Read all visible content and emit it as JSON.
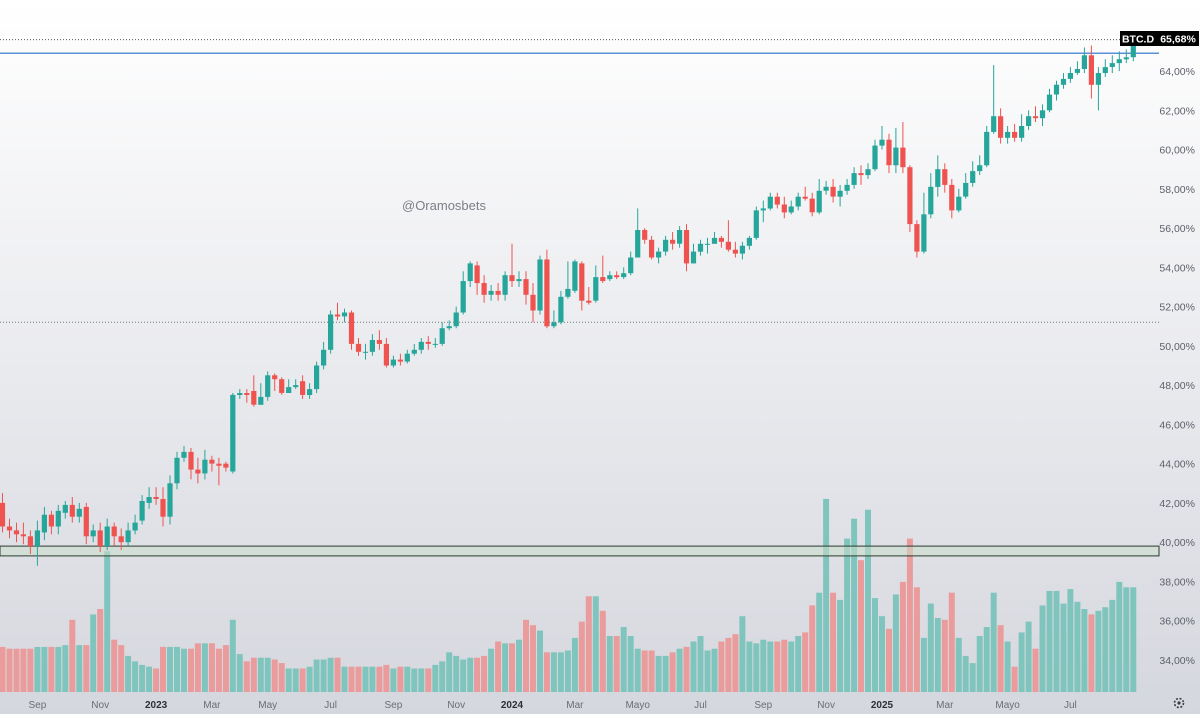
{
  "symbol_tag": "BTC.D",
  "price_tag": "65,68%",
  "watermark": "@Oramosbets",
  "colors": {
    "up": "#26a69a",
    "down": "#ef5350",
    "up_volume": "#80c5bd",
    "down_volume": "#ea9b9b",
    "resistance_line": "#5b8fd6",
    "support_zone": "#c9ddc8",
    "tag_bg": "#000000"
  },
  "chart_data": {
    "type": "candlestick",
    "timeframe": "weekly",
    "ylim": [
      32.8,
      66.4
    ],
    "y_ticks": [
      "34,00%",
      "36,00%",
      "38,00%",
      "40,00%",
      "42,00%",
      "44,00%",
      "46,00%",
      "48,00%",
      "50,00%",
      "52,00%",
      "54,00%",
      "56,00%",
      "58,00%",
      "60,00%",
      "62,00%",
      "64,00%"
    ],
    "x_ticks": [
      {
        "label": "Sep",
        "week": 5
      },
      {
        "label": "Nov",
        "week": 14
      },
      {
        "label": "2023",
        "week": 22
      },
      {
        "label": "Mar",
        "week": 30
      },
      {
        "label": "May",
        "week": 38
      },
      {
        "label": "Jul",
        "week": 47
      },
      {
        "label": "Sep",
        "week": 56
      },
      {
        "label": "Nov",
        "week": 65
      },
      {
        "label": "2024",
        "week": 73
      },
      {
        "label": "Mar",
        "week": 82
      },
      {
        "label": "Mayo",
        "week": 91
      },
      {
        "label": "Jul",
        "week": 100
      },
      {
        "label": "Sep",
        "week": 109
      },
      {
        "label": "Nov",
        "week": 118
      },
      {
        "label": "2025",
        "week": 126
      },
      {
        "label": "Mar",
        "week": 135
      },
      {
        "label": "Mayo",
        "week": 144
      },
      {
        "label": "Jul",
        "week": 153
      }
    ],
    "horizontal_levels": {
      "resistance": 64.9,
      "dotted_top": 65.6,
      "dotted_mid": 51.2,
      "support_zone": [
        39.3,
        39.8
      ]
    },
    "candles": [
      [
        42,
        40.8,
        42.5,
        40.5
      ],
      [
        40.8,
        40.6,
        41.2,
        40.2
      ],
      [
        40.6,
        40.4,
        41.0,
        40.0
      ],
      [
        40.4,
        40.3,
        41.0,
        39.9
      ],
      [
        40.3,
        39.8,
        40.6,
        39.4
      ],
      [
        39.8,
        40.6,
        41.1,
        38.8
      ],
      [
        40.5,
        41.4,
        41.8,
        40.1
      ],
      [
        41.4,
        40.8,
        41.6,
        40.4
      ],
      [
        40.8,
        41.6,
        41.9,
        40.4
      ],
      [
        41.5,
        41.9,
        42.1,
        41.2
      ],
      [
        41.9,
        41.3,
        42.3,
        41.0
      ],
      [
        41.3,
        41.7,
        42.0,
        41.0
      ],
      [
        41.8,
        40.3,
        42.0,
        39.9
      ],
      [
        40.3,
        40.6,
        40.9,
        40.0
      ],
      [
        40.6,
        39.8,
        41.0,
        39.5
      ],
      [
        39.8,
        40.8,
        41.2,
        39.6
      ],
      [
        40.8,
        40.3,
        41.0,
        39.8
      ],
      [
        40.3,
        40.0,
        40.7,
        39.6
      ],
      [
        40.0,
        40.6,
        41.0,
        39.8
      ],
      [
        40.6,
        41.0,
        41.4,
        40.4
      ],
      [
        41.1,
        42.1,
        42.4,
        40.9
      ],
      [
        42.0,
        42.3,
        42.8,
        41.7
      ],
      [
        42.3,
        42.2,
        42.8,
        41.9
      ],
      [
        42.2,
        41.3,
        42.8,
        40.8
      ],
      [
        41.3,
        43.0,
        43.4,
        40.9
      ],
      [
        43.0,
        44.3,
        44.6,
        42.7
      ],
      [
        44.3,
        44.6,
        44.9,
        44.1
      ],
      [
        44.6,
        43.7,
        44.8,
        43.2
      ],
      [
        43.7,
        43.5,
        44.3,
        43.0
      ],
      [
        43.5,
        44.2,
        44.7,
        43.2
      ],
      [
        44.2,
        44.0,
        44.4,
        43.6
      ],
      [
        44.0,
        43.9,
        44.3,
        42.9
      ],
      [
        44.0,
        43.8,
        44.1,
        43.6
      ],
      [
        43.6,
        47.5,
        47.6,
        43.5
      ],
      [
        47.5,
        47.6,
        47.8,
        47.3
      ],
      [
        47.6,
        47.5,
        47.8,
        47.1
      ],
      [
        47.7,
        47.0,
        48.5,
        46.9
      ],
      [
        47.0,
        47.4,
        48.1,
        47.0
      ],
      [
        47.4,
        48.5,
        48.7,
        47.2
      ],
      [
        48.5,
        48.3,
        48.6,
        47.7
      ],
      [
        48.3,
        47.6,
        48.4,
        47.5
      ],
      [
        47.6,
        47.9,
        48.3,
        47.6
      ],
      [
        47.9,
        48.0,
        48.3,
        47.8
      ],
      [
        48.2,
        47.5,
        48.5,
        47.3
      ],
      [
        47.5,
        47.8,
        48.1,
        47.3
      ],
      [
        47.8,
        49.0,
        49.2,
        47.6
      ],
      [
        49.0,
        49.8,
        50.2,
        48.8
      ],
      [
        49.8,
        51.6,
        51.8,
        49.6
      ],
      [
        51.6,
        51.5,
        52.2,
        51.3
      ],
      [
        51.5,
        51.7,
        51.9,
        51.2
      ],
      [
        51.7,
        50.1,
        51.8,
        49.8
      ],
      [
        50.1,
        49.7,
        50.4,
        49.5
      ],
      [
        49.7,
        49.7,
        50.1,
        49.3
      ],
      [
        49.7,
        50.3,
        50.6,
        49.5
      ],
      [
        50.3,
        50.1,
        50.8,
        49.8
      ],
      [
        50.1,
        49.0,
        50.4,
        48.9
      ],
      [
        49.0,
        49.3,
        49.5,
        48.9
      ],
      [
        49.3,
        49.2,
        49.6,
        49.0
      ],
      [
        49.2,
        49.6,
        49.8,
        49.1
      ],
      [
        49.6,
        49.8,
        50.1,
        49.5
      ],
      [
        49.8,
        50.2,
        50.4,
        49.6
      ],
      [
        50.2,
        50.1,
        50.5,
        49.8
      ],
      [
        50.1,
        50.1,
        50.4,
        49.9
      ],
      [
        50.1,
        50.9,
        51.2,
        50.0
      ],
      [
        50.9,
        51.0,
        51.3,
        50.8
      ],
      [
        51.0,
        51.7,
        52.0,
        50.9
      ],
      [
        51.7,
        53.3,
        53.8,
        51.6
      ],
      [
        53.3,
        54.2,
        54.3,
        53.0
      ],
      [
        54.1,
        53.2,
        54.3,
        52.6
      ],
      [
        53.2,
        52.6,
        53.6,
        52.2
      ],
      [
        52.6,
        52.8,
        53.1,
        52.3
      ],
      [
        52.8,
        52.6,
        53.2,
        52.3
      ],
      [
        52.6,
        53.6,
        53.8,
        52.3
      ],
      [
        53.6,
        53.3,
        55.2,
        53.0
      ],
      [
        53.3,
        53.4,
        53.8,
        53.0
      ],
      [
        53.4,
        52.6,
        53.8,
        52.1
      ],
      [
        52.6,
        51.8,
        53.2,
        51.2
      ],
      [
        51.8,
        54.4,
        54.6,
        51.6
      ],
      [
        54.4,
        51.0,
        54.9,
        50.9
      ],
      [
        51.0,
        51.2,
        51.8,
        50.9
      ],
      [
        51.2,
        52.5,
        52.8,
        51.1
      ],
      [
        52.5,
        52.9,
        54.3,
        52.4
      ],
      [
        52.8,
        54.3,
        54.4,
        52.7
      ],
      [
        54.2,
        52.3,
        54.3,
        51.8
      ],
      [
        52.3,
        52.2,
        53.0,
        52.1
      ],
      [
        52.3,
        53.5,
        54.1,
        52.2
      ],
      [
        53.5,
        53.3,
        54.6,
        53.2
      ],
      [
        53.4,
        53.6,
        53.8,
        53.3
      ],
      [
        53.6,
        53.5,
        53.8,
        53.4
      ],
      [
        53.5,
        53.7,
        54.0,
        53.4
      ],
      [
        53.7,
        54.5,
        54.8,
        53.6
      ],
      [
        54.5,
        55.9,
        57.0,
        54.5
      ],
      [
        55.9,
        55.4,
        56.0,
        55.2
      ],
      [
        55.4,
        54.5,
        55.6,
        54.4
      ],
      [
        54.5,
        54.8,
        55.0,
        54.2
      ],
      [
        54.8,
        55.4,
        55.6,
        54.6
      ],
      [
        55.4,
        55.2,
        55.8,
        54.9
      ],
      [
        55.2,
        55.9,
        56.1,
        55.0
      ],
      [
        55.9,
        54.2,
        56.2,
        53.8
      ],
      [
        54.2,
        54.8,
        55.2,
        54.2
      ],
      [
        54.8,
        55.2,
        55.4,
        54.6
      ],
      [
        55.2,
        55.2,
        55.5,
        54.7
      ],
      [
        55.2,
        55.5,
        55.8,
        55.2
      ],
      [
        55.5,
        55.3,
        55.6,
        55.0
      ],
      [
        55.3,
        54.9,
        56.4,
        54.8
      ],
      [
        54.9,
        54.7,
        55.3,
        54.5
      ],
      [
        54.7,
        55.1,
        55.3,
        54.4
      ],
      [
        55.1,
        55.5,
        55.6,
        54.9
      ],
      [
        55.5,
        56.9,
        57.1,
        55.4
      ],
      [
        56.9,
        57.0,
        57.4,
        56.3
      ],
      [
        57.0,
        57.6,
        57.8,
        56.9
      ],
      [
        57.6,
        57.2,
        57.8,
        57.0
      ],
      [
        57.2,
        56.8,
        57.6,
        56.5
      ],
      [
        56.8,
        57.1,
        57.4,
        56.7
      ],
      [
        57.1,
        57.6,
        57.8,
        56.9
      ],
      [
        57.6,
        57.5,
        58.1,
        57.4
      ],
      [
        57.5,
        56.8,
        57.8,
        56.6
      ],
      [
        56.8,
        57.9,
        58.5,
        56.7
      ],
      [
        57.9,
        58.1,
        58.4,
        57.7
      ],
      [
        58.1,
        57.6,
        58.5,
        57.3
      ],
      [
        57.6,
        57.9,
        58.2,
        57.1
      ],
      [
        57.9,
        58.2,
        58.5,
        57.7
      ],
      [
        58.2,
        58.8,
        59.1,
        58.0
      ],
      [
        58.8,
        58.7,
        59.2,
        58.2
      ],
      [
        58.7,
        59.0,
        59.3,
        58.5
      ],
      [
        59.0,
        60.2,
        60.5,
        58.9
      ],
      [
        60.2,
        60.5,
        61.2,
        60.0
      ],
      [
        60.5,
        59.2,
        60.8,
        58.8
      ],
      [
        59.2,
        60.1,
        61.1,
        58.8
      ],
      [
        60.1,
        59.1,
        61.4,
        58.8
      ],
      [
        59.1,
        56.2,
        59.2,
        55.8
      ],
      [
        56.2,
        54.8,
        56.4,
        54.5
      ],
      [
        54.8,
        56.7,
        57.8,
        54.7
      ],
      [
        56.7,
        58.1,
        58.8,
        56.5
      ],
      [
        58.1,
        59.0,
        59.7,
        57.6
      ],
      [
        59.0,
        58.2,
        59.3,
        57.8
      ],
      [
        58.2,
        56.9,
        58.5,
        56.5
      ],
      [
        56.9,
        57.6,
        58.0,
        56.8
      ],
      [
        57.6,
        58.3,
        58.8,
        57.5
      ],
      [
        58.3,
        58.9,
        59.4,
        58.1
      ],
      [
        58.9,
        59.2,
        59.7,
        58.7
      ],
      [
        59.2,
        60.9,
        61.2,
        59.1
      ],
      [
        60.9,
        61.7,
        64.3,
        60.8
      ],
      [
        61.7,
        60.6,
        62.1,
        60.3
      ],
      [
        60.6,
        60.9,
        61.2,
        60.3
      ],
      [
        60.9,
        60.6,
        61.3,
        60.4
      ],
      [
        60.6,
        61.2,
        61.8,
        60.4
      ],
      [
        61.2,
        61.7,
        62.0,
        61.0
      ],
      [
        61.7,
        61.6,
        62.2,
        61.4
      ],
      [
        61.6,
        62.0,
        62.3,
        61.2
      ],
      [
        62.0,
        62.8,
        63.1,
        61.9
      ],
      [
        62.8,
        63.3,
        63.5,
        62.5
      ],
      [
        63.3,
        63.6,
        63.9,
        63.1
      ],
      [
        63.6,
        63.9,
        64.2,
        63.4
      ],
      [
        63.9,
        64.1,
        64.5,
        63.8
      ],
      [
        64.1,
        64.8,
        65.2,
        63.9
      ],
      [
        64.8,
        63.3,
        65.3,
        62.6
      ],
      [
        63.3,
        63.9,
        64.2,
        62.0
      ],
      [
        63.9,
        64.2,
        64.6,
        63.7
      ],
      [
        64.2,
        64.4,
        64.8,
        63.9
      ],
      [
        64.4,
        64.6,
        65.0,
        64.0
      ],
      [
        64.6,
        64.7,
        65.1,
        64.4
      ],
      [
        64.7,
        65.68,
        65.9,
        64.5
      ]
    ],
    "volume_percent_of_max": [
      25,
      24,
      24,
      24,
      24,
      25,
      25,
      25,
      25,
      26,
      40,
      26,
      26,
      43,
      46,
      78,
      29,
      26,
      20,
      17,
      15,
      14,
      13,
      25,
      25,
      25,
      24,
      24,
      27,
      27,
      27,
      24,
      26,
      40,
      21,
      17,
      19,
      19,
      19,
      18,
      16,
      13,
      13,
      13,
      14,
      18,
      18,
      19,
      19,
      14,
      14,
      14,
      14,
      14,
      14,
      15,
      13,
      14,
      14,
      13,
      13,
      13,
      15,
      17,
      22,
      20,
      18,
      19,
      19,
      20,
      24,
      28,
      27,
      27,
      29,
      40,
      37,
      34,
      22,
      22,
      22,
      23,
      30,
      39,
      53,
      53,
      45,
      31,
      31,
      36,
      31,
      24,
      23,
      23,
      20,
      20,
      22,
      24,
      25,
      28,
      31,
      23,
      24,
      28,
      30,
      32,
      42,
      28,
      27,
      29,
      28,
      28,
      29,
      28,
      31,
      33,
      48,
      55,
      107,
      55,
      51,
      85,
      96,
      73,
      101,
      52,
      42,
      35,
      54,
      61,
      85,
      58,
      30,
      49,
      41,
      40,
      55,
      30,
      20,
      16,
      31,
      36,
      55,
      37,
      28,
      14,
      33,
      39,
      24,
      48,
      56,
      56,
      49,
      57,
      50,
      46,
      43,
      45,
      47,
      51,
      61,
      58,
      58
    ]
  }
}
